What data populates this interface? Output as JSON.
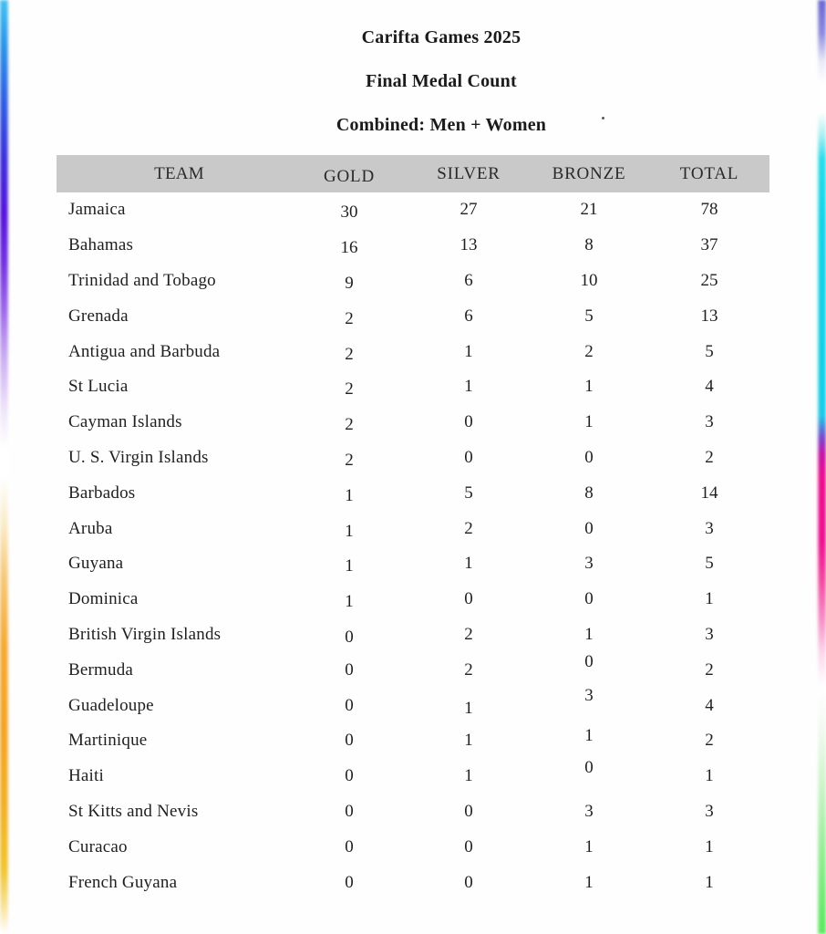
{
  "document": {
    "title": "Carifta Games 2025",
    "subtitle": "Final Medal Count",
    "category": "Combined: Men + Women"
  },
  "colors": {
    "header_band": "#c9c9c9",
    "text": "#1f1f1f",
    "left_edge_gradient": [
      "#41c2f1",
      "#3d2fdd",
      "#5514dc",
      "#9b67e9",
      "#ffffff",
      "#f6c877",
      "#f4a425",
      "#f1c42e"
    ],
    "right_edge_gradient": [
      "#6a66d3",
      "#ffffff",
      "#12d3e7",
      "#7a48cc",
      "#ec0c8e",
      "#ffffff",
      "#9fee9f",
      "#5ce75e"
    ]
  },
  "table": {
    "headers": [
      "TEAM",
      "GOLD",
      "SILVER",
      "BRONZE",
      "TOTAL"
    ],
    "rows": [
      {
        "team": "Jamaica",
        "gold": "30",
        "silver": "27",
        "bronze": "21",
        "total": "78"
      },
      {
        "team": "Bahamas",
        "gold": "16",
        "silver": "13",
        "bronze": "8",
        "total": "37"
      },
      {
        "team": "Trinidad and Tobago",
        "gold": "9",
        "silver": "6",
        "bronze": "10",
        "total": "25"
      },
      {
        "team": "Grenada",
        "gold": "2",
        "silver": "6",
        "bronze": "5",
        "total": "13"
      },
      {
        "team": "Antigua and Barbuda",
        "gold": "2",
        "silver": "1",
        "bronze": "2",
        "total": "5"
      },
      {
        "team": "St Lucia",
        "gold": "2",
        "silver": "1",
        "bronze": "1",
        "total": "4"
      },
      {
        "team": "Cayman Islands",
        "gold": "2",
        "silver": "0",
        "bronze": "1",
        "total": "3"
      },
      {
        "team": "U. S. Virgin Islands",
        "gold": "2",
        "silver": "0",
        "bronze": "0",
        "total": "2"
      },
      {
        "team": "Barbados",
        "gold": "1",
        "silver": "5",
        "bronze": "8",
        "total": "14"
      },
      {
        "team": "Aruba",
        "gold": "1",
        "silver": "2",
        "bronze": "0",
        "total": "3"
      },
      {
        "team": "Guyana",
        "gold": "1",
        "silver": "1",
        "bronze": "3",
        "total": "5"
      },
      {
        "team": "Dominica",
        "gold": "1",
        "silver": "0",
        "bronze": "0",
        "total": "1"
      },
      {
        "team": "British Virgin Islands",
        "gold": "0",
        "silver": "2",
        "bronze": "1",
        "total": "3"
      },
      {
        "team": "Bermuda",
        "gold": "0",
        "silver": "2",
        "bronze": "0",
        "total": "2"
      },
      {
        "team": "Guadeloupe",
        "gold": "0",
        "silver": "1",
        "bronze": "3",
        "total": "4"
      },
      {
        "team": "Martinique",
        "gold": "0",
        "silver": "1",
        "bronze": "1",
        "total": "2"
      },
      {
        "team": "Haiti",
        "gold": "0",
        "silver": "1",
        "bronze": "0",
        "total": "1"
      },
      {
        "team": "St Kitts and Nevis",
        "gold": "0",
        "silver": "0",
        "bronze": "3",
        "total": "3"
      },
      {
        "team": "Curacao",
        "gold": "0",
        "silver": "0",
        "bronze": "1",
        "total": "1"
      },
      {
        "team": "French Guyana",
        "gold": "0",
        "silver": "0",
        "bronze": "1",
        "total": "1"
      }
    ]
  }
}
